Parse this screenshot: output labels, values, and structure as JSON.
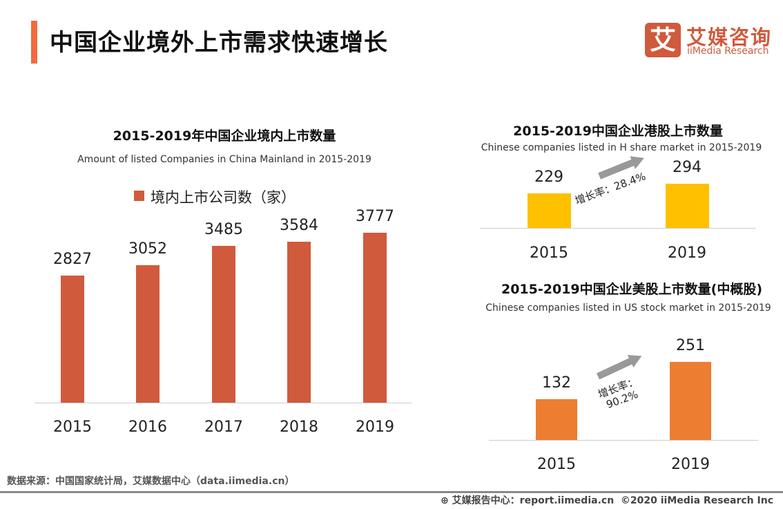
{
  "header": {
    "title": "中国企业境外上市需求快速增长",
    "logo_mark": "艾",
    "logo_cn": "艾媒咨询",
    "logo_en": "iiMedia Research"
  },
  "chart_data": [
    {
      "type": "bar",
      "title": "2015-2019年中国企业境内上市数量",
      "subtitle": "Amount of listed Companies in China Mainland in 2015-2019",
      "legend": "境内上市公司数（家）",
      "legend_position": "top",
      "categories": [
        "2015",
        "2016",
        "2017",
        "2018",
        "2019"
      ],
      "series": [
        {
          "name": "境内上市公司数（家）",
          "values": [
            2827,
            3052,
            3485,
            3584,
            3777
          ]
        }
      ],
      "color": "#D05A3C",
      "grid": false
    },
    {
      "type": "bar",
      "title": "2015-2019中国企业港股上市数量",
      "subtitle": "Chinese companies listed in H share market in 2015-2019",
      "categories": [
        "2015",
        "2019"
      ],
      "values": [
        229,
        294
      ],
      "annotation": "增长率：28.4%",
      "color": "#FFC000",
      "grid": false
    },
    {
      "type": "bar",
      "title": "2015-2019中国企业美股上市数量(中概股)",
      "subtitle": "Chinese companies listed in US stock market in 2015-2019",
      "categories": [
        "2015",
        "2019"
      ],
      "values": [
        132,
        251
      ],
      "annotation_label": "增长率：",
      "annotation_value": "90.2%",
      "color": "#ED7D31",
      "grid": false
    }
  ],
  "footer": {
    "source": "数据来源：中国国家统计局，艾媒数据中心（data.iimedia.cn）",
    "report": "艾媒报告中心：report.iimedia.cn",
    "copyright": "©2020  iiMedia Research  Inc"
  }
}
